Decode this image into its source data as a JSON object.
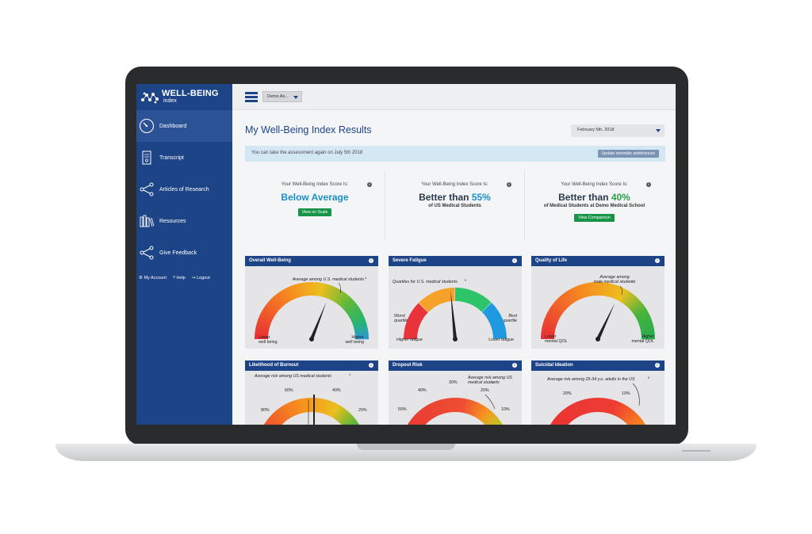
{
  "app": {
    "logo_title": "WELL-BEING",
    "logo_sub": "index"
  },
  "sidebar": {
    "items": [
      {
        "label": "Dashboard",
        "icon": "gauge-icon"
      },
      {
        "label": "Transcript",
        "icon": "document-icon"
      },
      {
        "label": "Articles of Research",
        "icon": "share-icon"
      },
      {
        "label": "Resources",
        "icon": "books-icon"
      },
      {
        "label": "Give Feedback",
        "icon": "share-icon"
      }
    ],
    "account": {
      "my_account": "My Account",
      "help": "Help",
      "logout": "Logout"
    }
  },
  "topbar": {
    "org_select": "Demo As..."
  },
  "main": {
    "title": "My Well-Being Index Results",
    "date_select": "February 5th, 2018",
    "reminder": {
      "text": "You can take the assessment again on July 5th 2018",
      "button": "Update reminder preferences"
    },
    "scores": [
      {
        "label": "Your Well-Being Index Score Is:",
        "prefix": "",
        "highlight": "Below Average",
        "sub": "",
        "button": "View on Scale",
        "color": "#1a8fc9"
      },
      {
        "label": "Your Well-Being Index Score Is:",
        "prefix": "Better than ",
        "highlight": "55%",
        "sub": "of US Medical Students",
        "button": "",
        "color": "#1a8fc9"
      },
      {
        "label": "Your Well-Being Index Score Is:",
        "prefix": "Better than ",
        "highlight": "40%",
        "sub": "of Medical Students at Demo Medical School",
        "button": "View Comparison",
        "color": "#2aa14a"
      }
    ],
    "gauges": [
      {
        "title": "Overall Well-Being",
        "annotation": "Average among U.S. medical students",
        "left": "Lower|well being",
        "right": "Higher|well being",
        "value": 0.62
      },
      {
        "title": "Severe Fatigue",
        "annotation": "Quartiles for U.S. medical students",
        "left": "Higher fatigue",
        "right": "Lower fatigue",
        "side_left": "Worst|quartile",
        "side_right": "Best|quartile",
        "value": 0.47
      },
      {
        "title": "Quality of Life",
        "annotation": "Average among|male medical students",
        "left": "Lower|mental QOL",
        "right": "Higher|mental QOL",
        "value": 0.64
      },
      {
        "title": "Likelihood of Burnout",
        "annotation": "Average risk among US medical students",
        "ticks": [
          "80%",
          "60%",
          "40%",
          "20%"
        ]
      },
      {
        "title": "Dropout Risk",
        "annotation": "Average risk among US|medical students",
        "ticks": [
          "50%",
          "40%",
          "30%",
          "20%",
          "10%"
        ]
      },
      {
        "title": "Suicidal Ideation",
        "annotation": "Average risk among 25-34 y.o. adults in the US",
        "ticks": [
          "20%",
          "10%"
        ]
      }
    ],
    "footnotes": [
      "4",
      "2",
      "3",
      "1",
      "1",
      "5"
    ]
  },
  "colors": {
    "brand": "#1e4488",
    "green": "#179447",
    "highlight_blue": "#1a8fc9"
  }
}
